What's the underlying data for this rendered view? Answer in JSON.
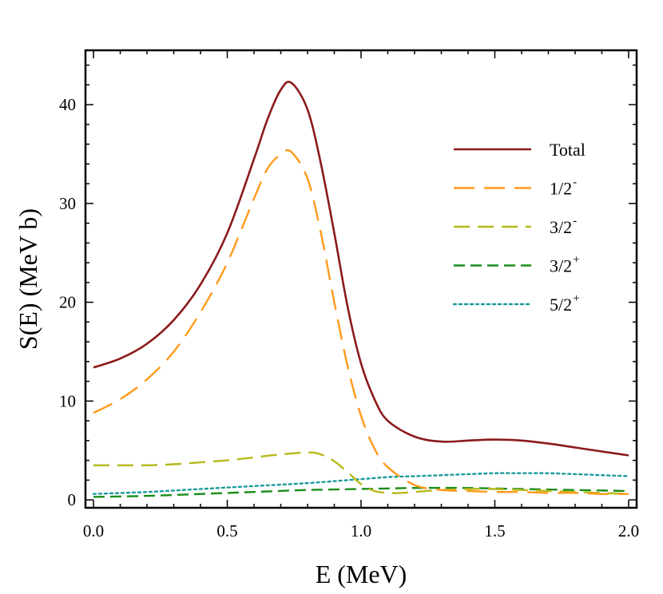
{
  "chart_data": {
    "type": "line",
    "title": "",
    "xlabel": "E (MeV)",
    "ylabel": "S(E) (MeV b)",
    "xlim": [
      -0.03,
      2.03
    ],
    "ylim": [
      -0.8,
      45.5
    ],
    "x_ticks": [
      0.0,
      0.5,
      1.0,
      1.5,
      2.0
    ],
    "x_tick_labels": [
      "0.0",
      "0.5",
      "1.0",
      "1.5",
      "2.0"
    ],
    "y_ticks": [
      0,
      10,
      20,
      30,
      40
    ],
    "y_tick_labels": [
      "0",
      "10",
      "20",
      "30",
      "40"
    ],
    "grid": false,
    "legend_position": "right",
    "series": [
      {
        "name": "Total",
        "label_main": "Total",
        "label_sup": "",
        "color": "#8b1a1a",
        "style": "solid",
        "x": [
          0.0,
          0.1,
          0.2,
          0.3,
          0.4,
          0.5,
          0.6,
          0.65,
          0.7,
          0.74,
          0.8,
          0.85,
          0.9,
          0.95,
          1.0,
          1.05,
          1.1,
          1.2,
          1.3,
          1.4,
          1.5,
          1.6,
          1.7,
          1.8,
          1.9,
          2.0
        ],
        "y": [
          13.4,
          14.3,
          15.8,
          18.2,
          21.8,
          27.0,
          34.5,
          38.5,
          41.5,
          42.2,
          39.5,
          34.0,
          27.0,
          19.5,
          13.8,
          10.2,
          8.0,
          6.4,
          5.9,
          6.0,
          6.1,
          6.0,
          5.7,
          5.3,
          4.9,
          4.5
        ]
      },
      {
        "name": "1/2-",
        "label_main": "1/2",
        "label_sup": "-",
        "color": "#ff9a1a",
        "style": "longdash",
        "x": [
          0.0,
          0.1,
          0.2,
          0.3,
          0.4,
          0.5,
          0.6,
          0.65,
          0.7,
          0.74,
          0.8,
          0.85,
          0.9,
          0.95,
          1.0,
          1.05,
          1.1,
          1.2,
          1.3,
          1.4,
          1.5,
          1.6,
          1.7,
          1.8,
          1.9,
          2.0
        ],
        "y": [
          8.8,
          10.2,
          12.2,
          15.0,
          19.0,
          24.0,
          30.5,
          33.5,
          35.0,
          35.2,
          32.5,
          27.0,
          20.0,
          13.5,
          8.5,
          5.2,
          3.3,
          1.5,
          1.0,
          0.9,
          0.8,
          0.8,
          0.7,
          0.7,
          0.6,
          0.6
        ]
      },
      {
        "name": "3/2-",
        "label_main": "3/2",
        "label_sup": "-",
        "color": "#b8b81a",
        "style": "dash",
        "x": [
          0.0,
          0.1,
          0.2,
          0.3,
          0.4,
          0.5,
          0.6,
          0.7,
          0.8,
          0.85,
          0.9,
          0.95,
          1.0,
          1.05,
          1.1,
          1.15,
          1.2,
          1.3,
          1.4,
          1.5,
          1.6,
          1.7,
          1.8,
          1.9,
          2.0
        ],
        "y": [
          3.5,
          3.5,
          3.5,
          3.6,
          3.8,
          4.0,
          4.3,
          4.6,
          4.8,
          4.6,
          3.9,
          2.8,
          1.6,
          0.9,
          0.7,
          0.7,
          0.8,
          1.0,
          1.1,
          1.1,
          1.0,
          0.9,
          0.8,
          0.7,
          0.6
        ]
      },
      {
        "name": "3/2+",
        "label_main": "3/2",
        "label_sup": "+",
        "color": "#1a8c1a",
        "style": "shortdash",
        "x": [
          0.0,
          0.2,
          0.4,
          0.6,
          0.8,
          1.0,
          1.2,
          1.4,
          1.6,
          1.8,
          2.0
        ],
        "y": [
          0.3,
          0.4,
          0.6,
          0.8,
          1.0,
          1.1,
          1.2,
          1.2,
          1.1,
          1.0,
          0.9
        ]
      },
      {
        "name": "5/2+",
        "label_main": "5/2",
        "label_sup": "+",
        "color": "#1a9a9a",
        "style": "dot",
        "x": [
          0.0,
          0.2,
          0.4,
          0.6,
          0.8,
          1.0,
          1.1,
          1.2,
          1.3,
          1.4,
          1.5,
          1.6,
          1.7,
          1.8,
          1.9,
          2.0
        ],
        "y": [
          0.6,
          0.8,
          1.1,
          1.4,
          1.7,
          2.1,
          2.3,
          2.4,
          2.5,
          2.6,
          2.7,
          2.7,
          2.7,
          2.6,
          2.5,
          2.4
        ]
      }
    ]
  }
}
